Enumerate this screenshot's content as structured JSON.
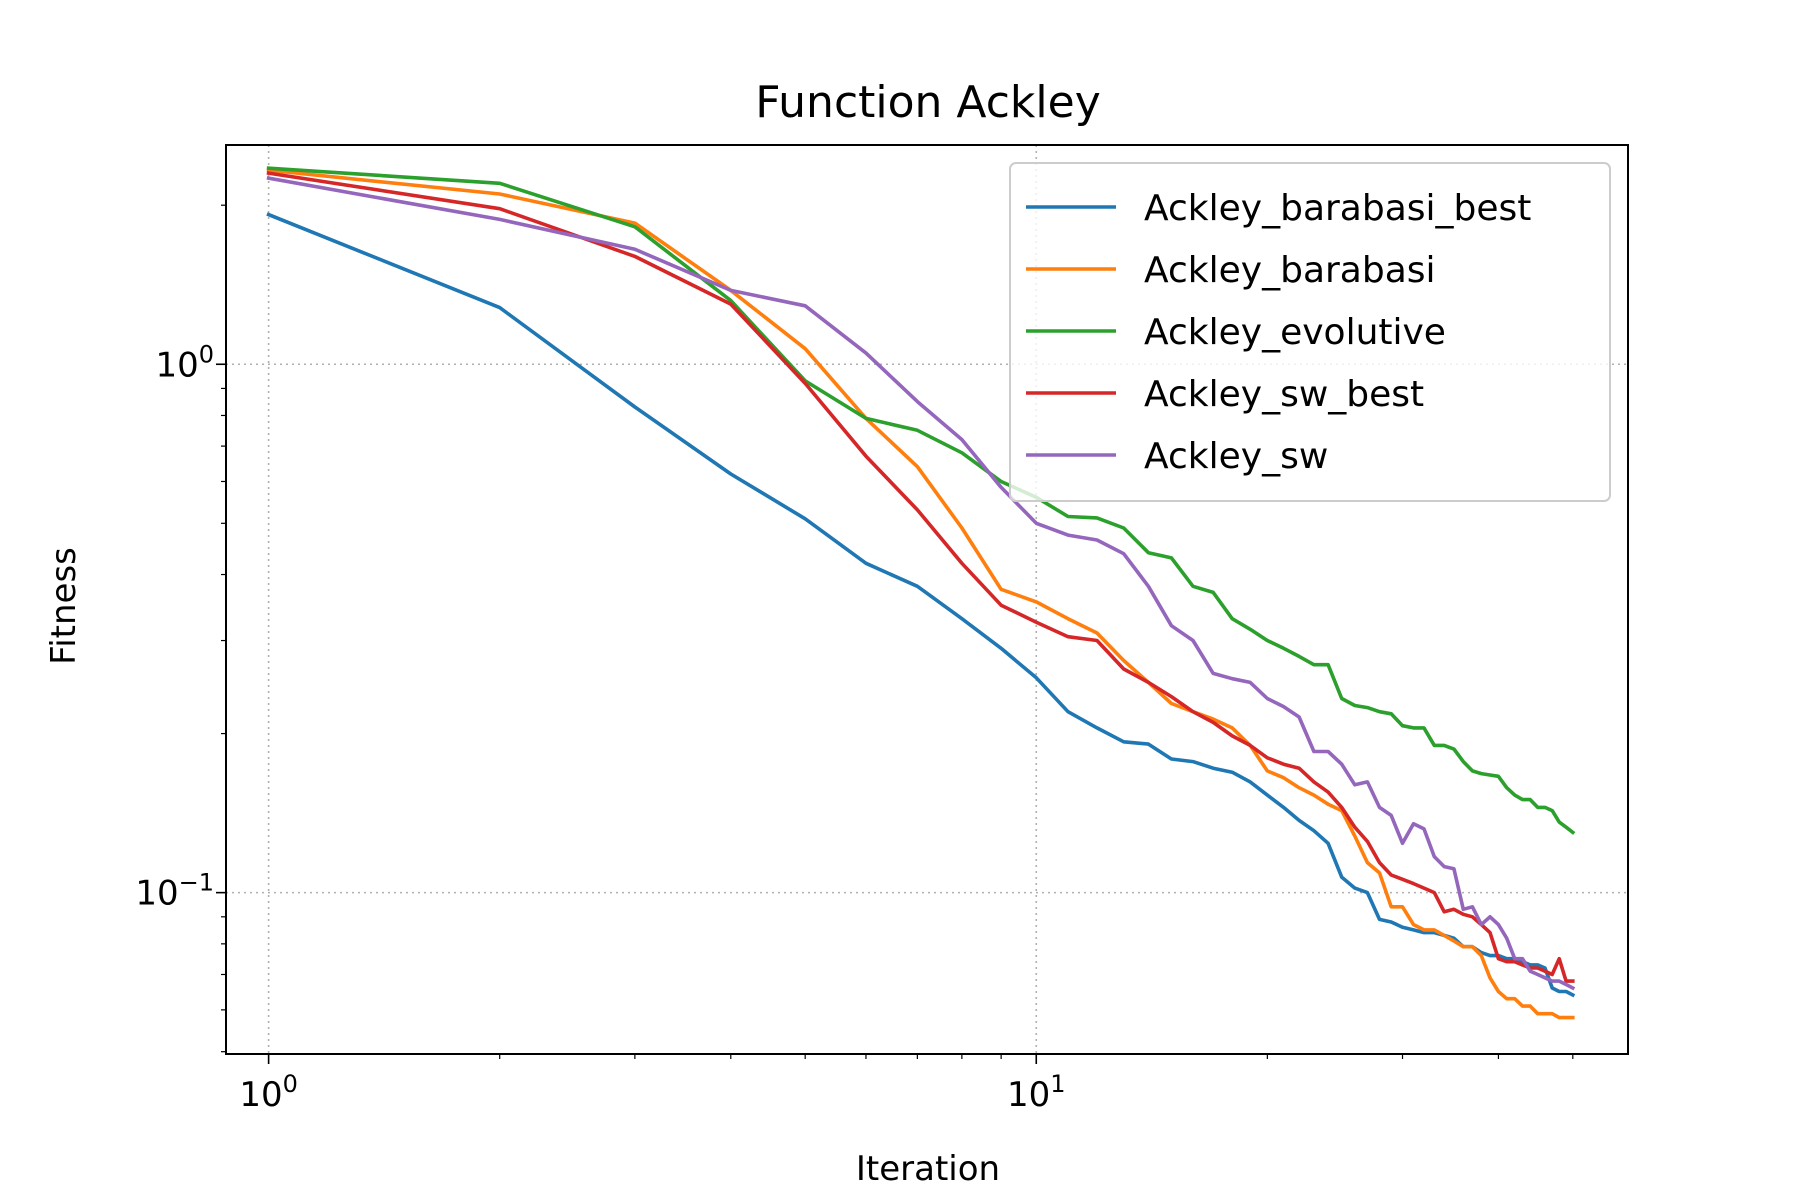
{
  "chart_data": {
    "type": "line",
    "title": "Function Ackley",
    "xlabel": "Iteration",
    "ylabel": "Fitness",
    "xscale": "log",
    "yscale": "log",
    "xlim": [
      0.88,
      59
    ],
    "ylim": [
      0.0495,
      2.6
    ],
    "x_ticks": [
      {
        "value": 1,
        "base": "10",
        "exp": "0"
      },
      {
        "value": 10,
        "base": "10",
        "exp": "1"
      }
    ],
    "y_ticks": [
      {
        "value": 0.1,
        "base": "10",
        "exp": "−1"
      },
      {
        "value": 1,
        "base": "10",
        "exp": "0"
      }
    ],
    "grid": true,
    "legend": "top-right",
    "series": [
      {
        "name": "Ackley_barabasi_best",
        "color": "#1f77b4",
        "points": [
          [
            1,
            1.92
          ],
          [
            2,
            1.28
          ],
          [
            3,
            0.83
          ],
          [
            4,
            0.62
          ],
          [
            5,
            0.51
          ],
          [
            6,
            0.42
          ],
          [
            7,
            0.38
          ],
          [
            8,
            0.33
          ],
          [
            9,
            0.29
          ],
          [
            10,
            0.255
          ],
          [
            11,
            0.22
          ],
          [
            12,
            0.205
          ],
          [
            13,
            0.193
          ],
          [
            14,
            0.191
          ],
          [
            15,
            0.179
          ],
          [
            16,
            0.177
          ],
          [
            17,
            0.172
          ],
          [
            18,
            0.169
          ],
          [
            19,
            0.162
          ],
          [
            20,
            0.153
          ],
          [
            21,
            0.145
          ],
          [
            22,
            0.137
          ],
          [
            23,
            0.131
          ],
          [
            24,
            0.124
          ],
          [
            25,
            0.107
          ],
          [
            26,
            0.102
          ],
          [
            27,
            0.1
          ],
          [
            28,
            0.089
          ],
          [
            29,
            0.088
          ],
          [
            30,
            0.086
          ],
          [
            31,
            0.085
          ],
          [
            32,
            0.084
          ],
          [
            33,
            0.084
          ],
          [
            34,
            0.083
          ],
          [
            35,
            0.082
          ],
          [
            36,
            0.079
          ],
          [
            37,
            0.079
          ],
          [
            38,
            0.077
          ],
          [
            39,
            0.076
          ],
          [
            40,
            0.076
          ],
          [
            41,
            0.075
          ],
          [
            42,
            0.075
          ],
          [
            43,
            0.074
          ],
          [
            44,
            0.073
          ],
          [
            45,
            0.073
          ],
          [
            46,
            0.072
          ],
          [
            47,
            0.066
          ],
          [
            48,
            0.065
          ],
          [
            49,
            0.065
          ],
          [
            50,
            0.064
          ]
        ]
      },
      {
        "name": "Ackley_barabasi",
        "color": "#ff7f0e",
        "points": [
          [
            1,
            2.33
          ],
          [
            2,
            2.1
          ],
          [
            3,
            1.85
          ],
          [
            4,
            1.38
          ],
          [
            5,
            1.07
          ],
          [
            6,
            0.79
          ],
          [
            7,
            0.64
          ],
          [
            8,
            0.49
          ],
          [
            9,
            0.375
          ],
          [
            10,
            0.355
          ],
          [
            11,
            0.33
          ],
          [
            12,
            0.31
          ],
          [
            13,
            0.275
          ],
          [
            14,
            0.25
          ],
          [
            15,
            0.228
          ],
          [
            16,
            0.22
          ],
          [
            17,
            0.213
          ],
          [
            18,
            0.205
          ],
          [
            19,
            0.19
          ],
          [
            20,
            0.17
          ],
          [
            21,
            0.165
          ],
          [
            22,
            0.158
          ],
          [
            23,
            0.153
          ],
          [
            24,
            0.147
          ],
          [
            25,
            0.143
          ],
          [
            26,
            0.128
          ],
          [
            27,
            0.114
          ],
          [
            28,
            0.109
          ],
          [
            29,
            0.094
          ],
          [
            30,
            0.094
          ],
          [
            31,
            0.087
          ],
          [
            32,
            0.085
          ],
          [
            33,
            0.085
          ],
          [
            34,
            0.083
          ],
          [
            35,
            0.081
          ],
          [
            36,
            0.079
          ],
          [
            37,
            0.079
          ],
          [
            38,
            0.076
          ],
          [
            39,
            0.069
          ],
          [
            40,
            0.065
          ],
          [
            41,
            0.063
          ],
          [
            42,
            0.063
          ],
          [
            43,
            0.061
          ],
          [
            44,
            0.061
          ],
          [
            45,
            0.059
          ],
          [
            46,
            0.059
          ],
          [
            47,
            0.059
          ],
          [
            48,
            0.058
          ],
          [
            49,
            0.058
          ],
          [
            50,
            0.058
          ]
        ]
      },
      {
        "name": "Ackley_evolutive",
        "color": "#2ca02c",
        "points": [
          [
            1,
            2.35
          ],
          [
            2,
            2.2
          ],
          [
            3,
            1.82
          ],
          [
            4,
            1.32
          ],
          [
            5,
            0.93
          ],
          [
            6,
            0.79
          ],
          [
            7,
            0.75
          ],
          [
            8,
            0.68
          ],
          [
            9,
            0.6
          ],
          [
            10,
            0.56
          ],
          [
            11,
            0.515
          ],
          [
            12,
            0.512
          ],
          [
            13,
            0.49
          ],
          [
            14,
            0.44
          ],
          [
            15,
            0.43
          ],
          [
            16,
            0.38
          ],
          [
            17,
            0.37
          ],
          [
            18,
            0.33
          ],
          [
            19,
            0.315
          ],
          [
            20,
            0.3
          ],
          [
            21,
            0.29
          ],
          [
            22,
            0.28
          ],
          [
            23,
            0.27
          ],
          [
            24,
            0.27
          ],
          [
            25,
            0.233
          ],
          [
            26,
            0.226
          ],
          [
            27,
            0.224
          ],
          [
            28,
            0.22
          ],
          [
            29,
            0.218
          ],
          [
            30,
            0.207
          ],
          [
            31,
            0.205
          ],
          [
            32,
            0.205
          ],
          [
            33,
            0.19
          ],
          [
            34,
            0.19
          ],
          [
            35,
            0.187
          ],
          [
            36,
            0.177
          ],
          [
            37,
            0.17
          ],
          [
            38,
            0.168
          ],
          [
            39,
            0.167
          ],
          [
            40,
            0.166
          ],
          [
            41,
            0.158
          ],
          [
            42,
            0.153
          ],
          [
            43,
            0.15
          ],
          [
            44,
            0.15
          ],
          [
            45,
            0.145
          ],
          [
            46,
            0.145
          ],
          [
            47,
            0.143
          ],
          [
            48,
            0.136
          ],
          [
            49,
            0.133
          ],
          [
            50,
            0.13
          ]
        ]
      },
      {
        "name": "Ackley_sw_best",
        "color": "#d62728",
        "points": [
          [
            1,
            2.3
          ],
          [
            2,
            1.97
          ],
          [
            3,
            1.6
          ],
          [
            4,
            1.3
          ],
          [
            5,
            0.92
          ],
          [
            6,
            0.67
          ],
          [
            7,
            0.53
          ],
          [
            8,
            0.42
          ],
          [
            9,
            0.35
          ],
          [
            10,
            0.325
          ],
          [
            11,
            0.305
          ],
          [
            12,
            0.3
          ],
          [
            13,
            0.265
          ],
          [
            14,
            0.25
          ],
          [
            15,
            0.235
          ],
          [
            16,
            0.22
          ],
          [
            17,
            0.21
          ],
          [
            18,
            0.198
          ],
          [
            19,
            0.19
          ],
          [
            20,
            0.18
          ],
          [
            21,
            0.175
          ],
          [
            22,
            0.172
          ],
          [
            23,
            0.162
          ],
          [
            24,
            0.155
          ],
          [
            25,
            0.145
          ],
          [
            26,
            0.133
          ],
          [
            27,
            0.125
          ],
          [
            28,
            0.114
          ],
          [
            29,
            0.108
          ],
          [
            30,
            0.106
          ],
          [
            31,
            0.104
          ],
          [
            32,
            0.102
          ],
          [
            33,
            0.1
          ],
          [
            34,
            0.092
          ],
          [
            35,
            0.093
          ],
          [
            36,
            0.091
          ],
          [
            37,
            0.09
          ],
          [
            38,
            0.087
          ],
          [
            39,
            0.084
          ],
          [
            40,
            0.075
          ],
          [
            41,
            0.074
          ],
          [
            42,
            0.074
          ],
          [
            43,
            0.073
          ],
          [
            44,
            0.072
          ],
          [
            45,
            0.072
          ],
          [
            46,
            0.071
          ],
          [
            47,
            0.07
          ],
          [
            48,
            0.075
          ],
          [
            49,
            0.068
          ],
          [
            50,
            0.068
          ]
        ]
      },
      {
        "name": "Ackley_sw",
        "color": "#9467bd",
        "points": [
          [
            1,
            2.25
          ],
          [
            2,
            1.88
          ],
          [
            3,
            1.65
          ],
          [
            4,
            1.38
          ],
          [
            5,
            1.29
          ],
          [
            6,
            1.05
          ],
          [
            7,
            0.85
          ],
          [
            8,
            0.72
          ],
          [
            9,
            0.585
          ],
          [
            10,
            0.5
          ],
          [
            11,
            0.475
          ],
          [
            12,
            0.465
          ],
          [
            13,
            0.438
          ],
          [
            14,
            0.38
          ],
          [
            15,
            0.32
          ],
          [
            16,
            0.3
          ],
          [
            17,
            0.26
          ],
          [
            18,
            0.254
          ],
          [
            19,
            0.25
          ],
          [
            20,
            0.233
          ],
          [
            21,
            0.225
          ],
          [
            22,
            0.215
          ],
          [
            23,
            0.185
          ],
          [
            24,
            0.185
          ],
          [
            25,
            0.175
          ],
          [
            26,
            0.16
          ],
          [
            27,
            0.162
          ],
          [
            28,
            0.145
          ],
          [
            29,
            0.14
          ],
          [
            30,
            0.124
          ],
          [
            31,
            0.135
          ],
          [
            32,
            0.132
          ],
          [
            33,
            0.117
          ],
          [
            34,
            0.112
          ],
          [
            35,
            0.111
          ],
          [
            36,
            0.093
          ],
          [
            37,
            0.094
          ],
          [
            38,
            0.087
          ],
          [
            39,
            0.09
          ],
          [
            40,
            0.087
          ],
          [
            41,
            0.082
          ],
          [
            42,
            0.075
          ],
          [
            43,
            0.075
          ],
          [
            44,
            0.071
          ],
          [
            45,
            0.07
          ],
          [
            46,
            0.069
          ],
          [
            47,
            0.068
          ],
          [
            48,
            0.068
          ],
          [
            49,
            0.067
          ],
          [
            50,
            0.066
          ]
        ]
      }
    ]
  }
}
